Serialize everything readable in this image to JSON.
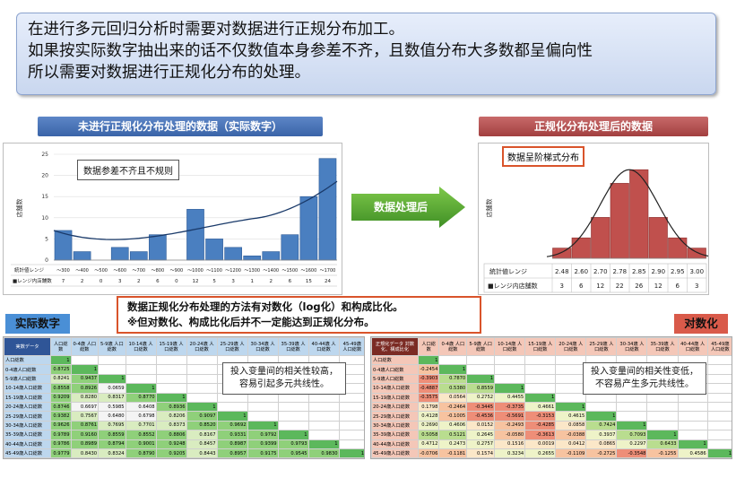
{
  "intro": {
    "line1": "在进行多元回归分析时需要对数据进行正规分布加工。",
    "line2": "如果按实际数字抽出来的话不仅数值本身参差不齐，且数值分布大多数都呈偏向性",
    "line3": "所以需要对数据进行正规化分布的处理。"
  },
  "left_header": "未进行正规化分布处理的数据（实际数字）",
  "right_header": "正规化分布处理后的数据",
  "arrow_label": "数据处理后",
  "left_chart": {
    "callout": "数据参差不齐且不规则",
    "ylabel": "店舗数",
    "yticks": [
      "0",
      "5",
      "10",
      "15",
      "20",
      "25"
    ],
    "row1_label": "統計値レンジ",
    "row2_label": "■レンジ内店舗数",
    "bins": [
      "～300",
      "～400",
      "～500",
      "～600",
      "～700",
      "～800",
      "～900",
      "～1000",
      "～1100",
      "～1200",
      "～1300",
      "～1400",
      "～1500",
      "～1600",
      "～1700"
    ],
    "counts": [
      "7",
      "2",
      "0",
      "3",
      "2",
      "6",
      "0",
      "12",
      "5",
      "3",
      "1",
      "2",
      "6",
      "15",
      "24"
    ]
  },
  "right_chart": {
    "callout": "数据呈阶梯式分布",
    "ylabel": "店舗数",
    "row1_label": "統計値レンジ",
    "row2_label": "■レンジ内店舗数",
    "bins": [
      "2.48",
      "2.60",
      "2.70",
      "2.78",
      "2.85",
      "2.90",
      "2.95",
      "3.00"
    ],
    "counts": [
      "3",
      "6",
      "12",
      "22",
      "26",
      "12",
      "6",
      "3"
    ]
  },
  "mid_note": {
    "line1": "数据正规化分布处理的方法有对数化（log化）和构成比化。",
    "line2": "※但对数化、构成比化后并不一定能达到正规化分布。"
  },
  "left_tag": "实际数字",
  "right_tag": "对数化",
  "left_table": {
    "corner": "実数データ",
    "cols": [
      "人口総数",
      "0-4歳 人口総数",
      "5-9歳 人口総数",
      "10-14歳 人口総数",
      "15-19歳 人口総数",
      "20-24歳 人口総数",
      "25-29歳 人口総数",
      "30-34歳 人口総数",
      "35-39歳 人口総数",
      "40-44歳 人口総数",
      "45-49歳 人口総数"
    ],
    "rows": [
      {
        "label": "人口総数",
        "v": [
          "1"
        ]
      },
      {
        "label": "0-4歳人口総数",
        "v": [
          "0.8725",
          "1"
        ]
      },
      {
        "label": "5-9歳人口総数",
        "v": [
          "0.8241",
          "0.9437",
          "1"
        ]
      },
      {
        "label": "10-14歳人口総数",
        "v": [
          "0.8558",
          "0.8926",
          "0.0659",
          "1"
        ]
      },
      {
        "label": "15-19歳人口総数",
        "v": [
          "0.9209",
          "0.8280",
          "0.8317",
          "0.8770",
          "1"
        ]
      },
      {
        "label": "20-24歳人口総数",
        "v": [
          "0.8746",
          "0.6697",
          "0.5985",
          "0.6408",
          "0.8936",
          "1"
        ]
      },
      {
        "label": "25-29歳人口総数",
        "v": [
          "0.9382",
          "0.7567",
          "0.6480",
          "0.6798",
          "0.8206",
          "0.9097",
          "1"
        ]
      },
      {
        "label": "30-34歳人口総数",
        "v": [
          "0.9626",
          "0.8761",
          "0.7695",
          "0.7701",
          "0.8373",
          "0.8520",
          "0.9692",
          "1"
        ]
      },
      {
        "label": "35-39歳人口総数",
        "v": [
          "0.9789",
          "0.9160",
          "0.8559",
          "0.8552",
          "0.8806",
          "0.8167",
          "0.9331",
          "0.9792",
          "1"
        ]
      },
      {
        "label": "40-44歳人口総数",
        "v": [
          "0.9786",
          "0.8989",
          "0.8794",
          "0.9001",
          "0.9248",
          "0.8457",
          "0.8987",
          "0.9399",
          "0.9793",
          "1"
        ]
      },
      {
        "label": "45-49歳人口総数",
        "v": [
          "0.9779",
          "0.8430",
          "0.8324",
          "0.8790",
          "0.9205",
          "0.8443",
          "0.8957",
          "0.9175",
          "0.9545",
          "0.9830",
          "1"
        ]
      }
    ],
    "note_line1": "投入变量间的相关性较高，",
    "note_line2": "容易引起多元共线性。"
  },
  "right_table": {
    "corner": "正規化データ 対数化、構成比化",
    "cols": [
      "人口総数",
      "0-4歳 人口総数",
      "5-9歳 人口総数",
      "10-14歳 人口総数",
      "15-19歳 人口総数",
      "20-24歳 人口総数",
      "25-29歳 人口総数",
      "30-34歳 人口総数",
      "35-39歳 人口総数",
      "40-44歳 人口総数",
      "45-49歳 人口総数"
    ],
    "rows": [
      {
        "label": "人口総数",
        "v": [
          "1"
        ]
      },
      {
        "label": "0-4歳人口総数",
        "v": [
          "-0.2454",
          "1"
        ]
      },
      {
        "label": "5-9歳人口総数",
        "v": [
          "-0.3903",
          "0.7870",
          "1"
        ]
      },
      {
        "label": "10-14歳人口総数",
        "v": [
          "-0.4887",
          "0.5380",
          "0.8559",
          "1"
        ]
      },
      {
        "label": "15-19歳人口総数",
        "v": [
          "-0.3575",
          "0.0564",
          "0.2752",
          "0.4455",
          "1"
        ]
      },
      {
        "label": "20-24歳人口総数",
        "v": [
          "0.1798",
          "-0.2464",
          "-0.3445",
          "-0.3735",
          "0.4661",
          "1"
        ]
      },
      {
        "label": "25-29歳人口総数",
        "v": [
          "0.4128",
          "-0.1005",
          "-0.4536",
          "-0.5691",
          "-0.3153",
          "0.4615",
          "1"
        ]
      },
      {
        "label": "30-34歳人口総数",
        "v": [
          "0.2690",
          "0.4606",
          "0.0152",
          "-0.2493",
          "-0.4285",
          "0.0858",
          "0.7424",
          "1"
        ]
      },
      {
        "label": "35-39歳人口総数",
        "v": [
          "0.5058",
          "0.5121",
          "0.2645",
          "-0.0580",
          "-0.3613",
          "-0.0388",
          "0.3937",
          "0.7093",
          "1"
        ]
      },
      {
        "label": "40-44歳人口総数",
        "v": [
          "0.4712",
          "0.2473",
          "0.2757",
          "0.1516",
          "0.0019",
          "0.0412",
          "0.0865",
          "0.2297",
          "0.6433",
          "1"
        ]
      },
      {
        "label": "45-49歳人口総数",
        "v": [
          "-0.0706",
          "-0.1181",
          "0.1574",
          "0.3234",
          "0.2655",
          "-0.1109",
          "-0.2725",
          "-0.3548",
          "-0.1255",
          "0.4586",
          "1"
        ]
      }
    ],
    "note_line1": "投入变量间的相关性变低，",
    "note_line2": "不容易产生多元共线性。"
  }
}
